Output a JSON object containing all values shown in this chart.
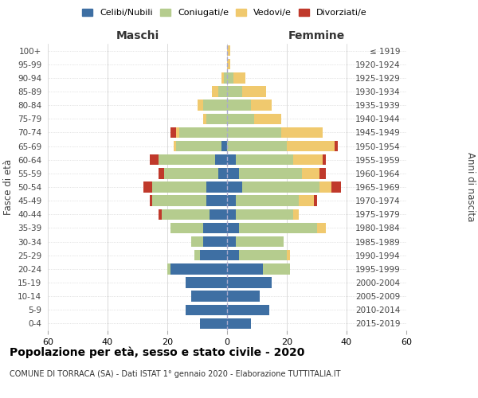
{
  "age_groups": [
    "0-4",
    "5-9",
    "10-14",
    "15-19",
    "20-24",
    "25-29",
    "30-34",
    "35-39",
    "40-44",
    "45-49",
    "50-54",
    "55-59",
    "60-64",
    "65-69",
    "70-74",
    "75-79",
    "80-84",
    "85-89",
    "90-94",
    "95-99",
    "100+"
  ],
  "birth_years": [
    "2015-2019",
    "2010-2014",
    "2005-2009",
    "2000-2004",
    "1995-1999",
    "1990-1994",
    "1985-1989",
    "1980-1984",
    "1975-1979",
    "1970-1974",
    "1965-1969",
    "1960-1964",
    "1955-1959",
    "1950-1954",
    "1945-1949",
    "1940-1944",
    "1935-1939",
    "1930-1934",
    "1925-1929",
    "1920-1924",
    "≤ 1919"
  ],
  "maschi": {
    "celibi": [
      9,
      14,
      12,
      14,
      19,
      9,
      8,
      8,
      6,
      7,
      7,
      3,
      4,
      2,
      0,
      0,
      0,
      0,
      0,
      0,
      0
    ],
    "coniugati": [
      0,
      0,
      0,
      0,
      1,
      2,
      4,
      11,
      16,
      18,
      18,
      18,
      19,
      15,
      16,
      7,
      8,
      3,
      1,
      0,
      0
    ],
    "vedovi": [
      0,
      0,
      0,
      0,
      0,
      0,
      0,
      0,
      0,
      0,
      0,
      0,
      0,
      1,
      1,
      1,
      2,
      2,
      1,
      0,
      0
    ],
    "divorziati": [
      0,
      0,
      0,
      0,
      0,
      0,
      0,
      0,
      1,
      1,
      3,
      2,
      3,
      0,
      2,
      0,
      0,
      0,
      0,
      0,
      0
    ]
  },
  "femmine": {
    "nubili": [
      8,
      14,
      11,
      15,
      12,
      4,
      3,
      4,
      3,
      3,
      5,
      4,
      3,
      0,
      0,
      0,
      0,
      0,
      0,
      0,
      0
    ],
    "coniugate": [
      0,
      0,
      0,
      0,
      9,
      16,
      16,
      26,
      19,
      21,
      26,
      21,
      19,
      20,
      18,
      9,
      8,
      5,
      2,
      0,
      0
    ],
    "vedove": [
      0,
      0,
      0,
      0,
      0,
      1,
      0,
      3,
      2,
      5,
      4,
      6,
      10,
      16,
      14,
      9,
      7,
      8,
      4,
      1,
      1
    ],
    "divorziate": [
      0,
      0,
      0,
      0,
      0,
      0,
      0,
      0,
      0,
      1,
      3,
      2,
      1,
      1,
      0,
      0,
      0,
      0,
      0,
      0,
      0
    ]
  },
  "colors": {
    "celibi": "#3e6fa3",
    "coniugati": "#b5cc8e",
    "vedovi": "#f0c96e",
    "divorziati": "#c0392b"
  },
  "xlim": 60,
  "title": "Popolazione per età, sesso e stato civile - 2020",
  "subtitle": "COMUNE DI TORRACA (SA) - Dati ISTAT 1° gennaio 2020 - Elaborazione TUTTITALIA.IT",
  "ylabel_left": "Fasce di età",
  "ylabel_right": "Anni di nascita",
  "maschi_label": "Maschi",
  "femmine_label": "Femmine"
}
